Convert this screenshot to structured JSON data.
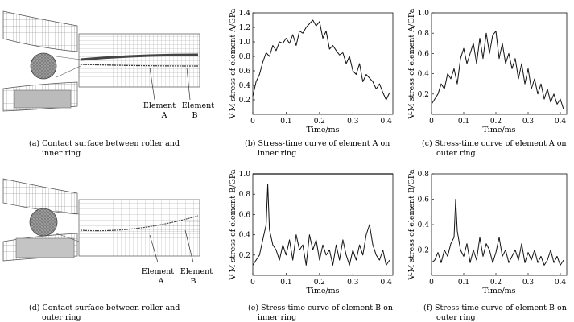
{
  "figure": {
    "labels": {
      "element_a": [
        "Element",
        "A"
      ],
      "element_b": [
        "Element",
        "B"
      ]
    },
    "captions": {
      "a": [
        "(a) Contact surface between roller and",
        "inner ring"
      ],
      "b": [
        "(b) Stress-time curve of element A on",
        "inner ring"
      ],
      "c": [
        "(c) Stress-time curve of element A on",
        "outer ring"
      ],
      "d": [
        "(d) Contact surface between roller and",
        "outer ring"
      ],
      "e": [
        "(e) Stress-time curve of element B on",
        "inner ring"
      ],
      "f": [
        "(f) Stress-time curve of element B on",
        "outer ring"
      ]
    }
  },
  "chart_data": [
    {
      "id": "b",
      "type": "line",
      "xlabel": "Time/ms",
      "ylabel": "V-M stress of element A/GPa",
      "xlim": [
        0,
        0.42
      ],
      "ylim": [
        0,
        1.4
      ],
      "xticks": [
        "0",
        "0.1",
        "0.2",
        "0.3",
        "0.4"
      ],
      "xtick_values": [
        0,
        0.1,
        0.2,
        0.3,
        0.4
      ],
      "yticks": [
        "0.2",
        "0.4",
        "0.6",
        "0.8",
        "1.0",
        "1.2",
        "1.4"
      ],
      "ytick_values": [
        0.2,
        0.4,
        0.6,
        0.8,
        1.0,
        1.2,
        1.4
      ],
      "ref_line": null,
      "x": [
        0.0,
        0.01,
        0.02,
        0.03,
        0.04,
        0.05,
        0.06,
        0.07,
        0.08,
        0.09,
        0.1,
        0.11,
        0.12,
        0.13,
        0.14,
        0.15,
        0.16,
        0.17,
        0.18,
        0.19,
        0.2,
        0.21,
        0.22,
        0.23,
        0.24,
        0.25,
        0.26,
        0.27,
        0.28,
        0.29,
        0.3,
        0.31,
        0.32,
        0.33,
        0.34,
        0.35,
        0.36,
        0.37,
        0.38,
        0.39,
        0.4,
        0.41
      ],
      "y": [
        0.25,
        0.45,
        0.55,
        0.72,
        0.85,
        0.8,
        0.95,
        0.88,
        1.0,
        0.98,
        1.05,
        0.98,
        1.1,
        0.95,
        1.15,
        1.12,
        1.2,
        1.25,
        1.3,
        1.22,
        1.28,
        1.05,
        1.15,
        0.9,
        0.95,
        0.88,
        0.82,
        0.85,
        0.7,
        0.8,
        0.6,
        0.55,
        0.7,
        0.45,
        0.55,
        0.5,
        0.45,
        0.35,
        0.42,
        0.3,
        0.2,
        0.3
      ]
    },
    {
      "id": "c",
      "type": "line",
      "xlabel": "Time/ms",
      "ylabel": "V-M stress of element A/GPa",
      "xlim": [
        0,
        0.42
      ],
      "ylim": [
        0,
        1.0
      ],
      "xticks": [
        "0",
        "0.1",
        "0.2",
        "0.3",
        "0.4"
      ],
      "xtick_values": [
        0,
        0.1,
        0.2,
        0.3,
        0.4
      ],
      "yticks": [
        "0.2",
        "0.4",
        "0.6",
        "0.8",
        "1.0"
      ],
      "ytick_values": [
        0.2,
        0.4,
        0.6,
        0.8,
        1.0
      ],
      "ref_line": null,
      "x": [
        0.0,
        0.01,
        0.02,
        0.03,
        0.04,
        0.05,
        0.06,
        0.07,
        0.08,
        0.09,
        0.1,
        0.11,
        0.12,
        0.13,
        0.14,
        0.15,
        0.16,
        0.17,
        0.18,
        0.19,
        0.2,
        0.21,
        0.22,
        0.23,
        0.24,
        0.25,
        0.26,
        0.27,
        0.28,
        0.29,
        0.3,
        0.31,
        0.32,
        0.33,
        0.34,
        0.35,
        0.36,
        0.37,
        0.38,
        0.39,
        0.4,
        0.41
      ],
      "y": [
        0.1,
        0.15,
        0.2,
        0.3,
        0.25,
        0.4,
        0.35,
        0.45,
        0.3,
        0.55,
        0.65,
        0.5,
        0.6,
        0.7,
        0.5,
        0.75,
        0.55,
        0.8,
        0.6,
        0.78,
        0.82,
        0.55,
        0.7,
        0.5,
        0.6,
        0.45,
        0.55,
        0.35,
        0.5,
        0.3,
        0.45,
        0.25,
        0.35,
        0.2,
        0.3,
        0.15,
        0.25,
        0.12,
        0.2,
        0.1,
        0.15,
        0.05
      ]
    },
    {
      "id": "e",
      "type": "line",
      "xlabel": "Time/ms",
      "ylabel": "V-M stress of element B/GPa",
      "xlim": [
        0,
        0.42
      ],
      "ylim": [
        0,
        1.0
      ],
      "xticks": [
        "0",
        "0.1",
        "0.2",
        "0.3",
        "0.4"
      ],
      "xtick_values": [
        0,
        0.1,
        0.2,
        0.3,
        0.4
      ],
      "yticks": [
        "0.2",
        "0.4",
        "0.6",
        "0.8",
        "1.0"
      ],
      "ytick_values": [
        0.2,
        0.4,
        0.6,
        0.8,
        1.0
      ],
      "ref_line": 1.0,
      "x": [
        0.0,
        0.01,
        0.02,
        0.03,
        0.04,
        0.045,
        0.05,
        0.06,
        0.07,
        0.08,
        0.09,
        0.1,
        0.11,
        0.12,
        0.13,
        0.14,
        0.15,
        0.16,
        0.17,
        0.18,
        0.19,
        0.2,
        0.21,
        0.22,
        0.23,
        0.24,
        0.25,
        0.26,
        0.27,
        0.28,
        0.29,
        0.3,
        0.31,
        0.32,
        0.33,
        0.34,
        0.35,
        0.36,
        0.37,
        0.38,
        0.39,
        0.4,
        0.41
      ],
      "y": [
        0.1,
        0.15,
        0.2,
        0.35,
        0.5,
        0.9,
        0.45,
        0.3,
        0.25,
        0.15,
        0.3,
        0.2,
        0.35,
        0.15,
        0.4,
        0.25,
        0.3,
        0.1,
        0.4,
        0.25,
        0.35,
        0.15,
        0.3,
        0.2,
        0.25,
        0.1,
        0.3,
        0.15,
        0.35,
        0.2,
        0.1,
        0.25,
        0.15,
        0.3,
        0.2,
        0.4,
        0.5,
        0.3,
        0.2,
        0.15,
        0.25,
        0.1,
        0.15
      ]
    },
    {
      "id": "f",
      "type": "line",
      "xlabel": "Time/ms",
      "ylabel": "V-M stress of element B/GPa",
      "xlim": [
        0,
        0.42
      ],
      "ylim": [
        0,
        0.8
      ],
      "xticks": [
        "0",
        "0.1",
        "0.2",
        "0.3",
        "0.4"
      ],
      "xtick_values": [
        0,
        0.1,
        0.2,
        0.3,
        0.4
      ],
      "yticks": [
        "0.2",
        "0.4",
        "0.6",
        "0.8"
      ],
      "ytick_values": [
        0.2,
        0.4,
        0.6,
        0.8
      ],
      "ref_line": null,
      "x": [
        0.0,
        0.01,
        0.02,
        0.03,
        0.04,
        0.05,
        0.06,
        0.07,
        0.075,
        0.08,
        0.09,
        0.1,
        0.11,
        0.12,
        0.13,
        0.14,
        0.15,
        0.16,
        0.17,
        0.18,
        0.19,
        0.2,
        0.21,
        0.22,
        0.23,
        0.24,
        0.25,
        0.26,
        0.27,
        0.28,
        0.29,
        0.3,
        0.31,
        0.32,
        0.33,
        0.34,
        0.35,
        0.36,
        0.37,
        0.38,
        0.39,
        0.4,
        0.41
      ],
      "y": [
        0.1,
        0.12,
        0.18,
        0.1,
        0.2,
        0.15,
        0.25,
        0.3,
        0.6,
        0.35,
        0.2,
        0.15,
        0.25,
        0.1,
        0.2,
        0.12,
        0.3,
        0.15,
        0.25,
        0.2,
        0.1,
        0.18,
        0.3,
        0.15,
        0.2,
        0.1,
        0.15,
        0.2,
        0.12,
        0.25,
        0.1,
        0.18,
        0.12,
        0.2,
        0.1,
        0.15,
        0.08,
        0.12,
        0.2,
        0.1,
        0.15,
        0.08,
        0.12
      ]
    }
  ]
}
